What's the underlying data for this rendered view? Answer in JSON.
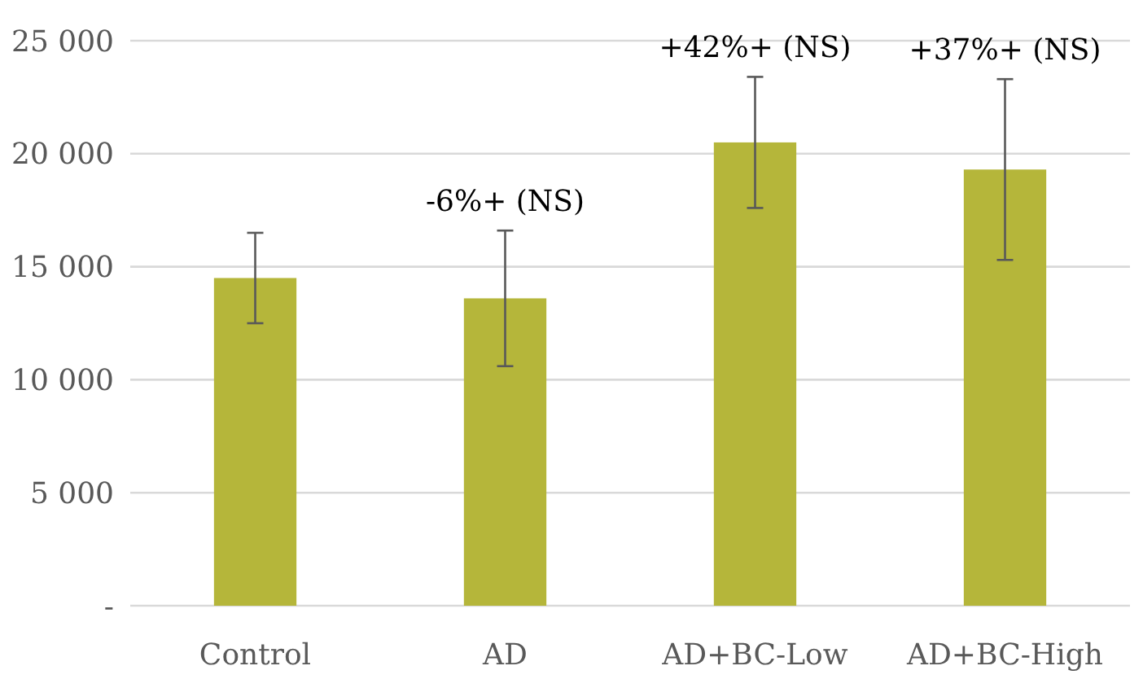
{
  "chart_data": {
    "type": "bar",
    "categories": [
      "Control",
      "AD",
      "AD+BC-Low",
      "AD+BC-High"
    ],
    "values": [
      14500,
      13600,
      20500,
      19300
    ],
    "color": "#b5b63a",
    "errors": [
      [
        12500,
        16500
      ],
      [
        10600,
        16600
      ],
      [
        17600,
        23400
      ],
      [
        15300,
        23300
      ]
    ],
    "ylim": [
      0,
      25000
    ],
    "yticks": [
      {
        "value": 0,
        "label": "-"
      },
      {
        "value": 5000,
        "label": "5 000"
      },
      {
        "value": 10000,
        "label": "10 000"
      },
      {
        "value": 15000,
        "label": "15 000"
      },
      {
        "value": 20000,
        "label": "20 000"
      },
      {
        "value": 25000,
        "label": "25 000"
      }
    ],
    "grid": "y",
    "annotations": [
      {
        "text": "-6%+ (NS)",
        "x": "AD",
        "y": 16600
      },
      {
        "text": "+42%+ (NS)",
        "x": "AD+BC-Low",
        "y": 23400
      },
      {
        "text": "+37%+ (NS)",
        "x": "AD+BC-High",
        "y": 23300
      }
    ]
  }
}
